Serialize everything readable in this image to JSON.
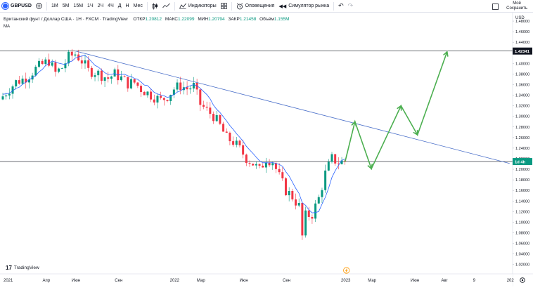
{
  "toolbar": {
    "symbol": "GBPUSD",
    "intervals": [
      "1M",
      "5M",
      "15M",
      "1Ч",
      "2Ч",
      "4Ч",
      "Д",
      "Н",
      "Мес"
    ],
    "indicators_label": "Индикаторы",
    "alerts_label": "Оповещения",
    "replay_label": "Симулятор рынка",
    "save_top": "Моё",
    "save_bottom": "Сохранить"
  },
  "legend": {
    "title": "Британский фунт / Доллар США · 1Н · FXCM · TradingView",
    "open_label": "ОТКР",
    "open": "1.20812",
    "high_label": "МАКС",
    "high": "1.22099",
    "low_label": "МИН",
    "low": "1.20794",
    "close_label": "ЗАКР",
    "close": "1.21458",
    "volume_label": "Объём",
    "volume": "1.155M",
    "ma_label": "MA"
  },
  "logo": {
    "text": "TradingView"
  },
  "colors": {
    "up": "#089981",
    "down": "#f23645",
    "ma": "#2962ff",
    "trend": "#4a6fc9",
    "forecast": "#4caf50"
  },
  "chart_data": {
    "type": "candlestick",
    "currency": "USD",
    "y_ticks": [
      "1.48000",
      "1.46000",
      "1.44000",
      "1.42000",
      "1.40000",
      "1.38000",
      "1.36000",
      "1.34000",
      "1.32000",
      "1.30000",
      "1.28000",
      "1.26000",
      "1.24000",
      "1.22000",
      "1.20000",
      "1.18000",
      "1.16000",
      "1.14000",
      "1.12000",
      "1.10000",
      "1.08000",
      "1.06000",
      "1.04000",
      "1.02000"
    ],
    "ylim": [
      1.005,
      1.496
    ],
    "x_ticks": [
      {
        "label": "2021",
        "idx": 0
      },
      {
        "label": "Апр",
        "idx": 13
      },
      {
        "label": "Июн",
        "idx": 22
      },
      {
        "label": "Сен",
        "idx": 35
      },
      {
        "label": "2022",
        "idx": 52
      },
      {
        "label": "Мар",
        "idx": 60
      },
      {
        "label": "Июн",
        "idx": 73
      },
      {
        "label": "Сен",
        "idx": 86
      },
      {
        "label": "2023",
        "idx": 104
      },
      {
        "label": "Мар",
        "idx": 112
      },
      {
        "label": "Июн",
        "idx": 125
      },
      {
        "label": "Авг",
        "idx": 134
      },
      {
        "label": "9",
        "idx": 143
      },
      {
        "label": "202",
        "idx": 154
      }
    ],
    "price_labels": [
      {
        "text": "1.42341",
        "value": 1.42341,
        "style": "dark"
      },
      {
        "text": "1d 4h",
        "value": 1.21458,
        "style": "green"
      }
    ],
    "horizontal_lines": [
      1.42341,
      1.21458
    ],
    "trend_line": {
      "from": [
        22,
        1.4235
      ],
      "to": [
        154,
        1.211
      ]
    },
    "forecast_path": [
      [
        104,
        1.214
      ],
      [
        107,
        1.29
      ],
      [
        112,
        1.201
      ],
      [
        121,
        1.32
      ],
      [
        126,
        1.265
      ],
      [
        135,
        1.422
      ]
    ],
    "close_path": [
      [
        0,
        1.338
      ],
      [
        2,
        1.352
      ],
      [
        4,
        1.365
      ],
      [
        6,
        1.37
      ],
      [
        8,
        1.378
      ],
      [
        10,
        1.39
      ],
      [
        12,
        1.398
      ],
      [
        14,
        1.405
      ],
      [
        16,
        1.382
      ],
      [
        18,
        1.392
      ],
      [
        20,
        1.412
      ],
      [
        22,
        1.418
      ],
      [
        24,
        1.405
      ],
      [
        26,
        1.386
      ],
      [
        28,
        1.384
      ],
      [
        30,
        1.378
      ],
      [
        32,
        1.372
      ],
      [
        34,
        1.38
      ],
      [
        36,
        1.372
      ],
      [
        38,
        1.362
      ],
      [
        40,
        1.364
      ],
      [
        42,
        1.352
      ],
      [
        44,
        1.344
      ],
      [
        46,
        1.337
      ],
      [
        48,
        1.33
      ],
      [
        50,
        1.338
      ],
      [
        52,
        1.352
      ],
      [
        54,
        1.358
      ],
      [
        56,
        1.352
      ],
      [
        58,
        1.357
      ],
      [
        60,
        1.323
      ],
      [
        62,
        1.311
      ],
      [
        64,
        1.301
      ],
      [
        66,
        1.282
      ],
      [
        68,
        1.259
      ],
      [
        70,
        1.252
      ],
      [
        72,
        1.238
      ],
      [
        74,
        1.221
      ],
      [
        76,
        1.211
      ],
      [
        78,
        1.198
      ],
      [
        80,
        1.221
      ],
      [
        82,
        1.215
      ],
      [
        84,
        1.186
      ],
      [
        86,
        1.16
      ],
      [
        88,
        1.148
      ],
      [
        90,
        1.13
      ],
      [
        91,
        1.073
      ],
      [
        92,
        1.112
      ],
      [
        94,
        1.115
      ],
      [
        96,
        1.145
      ],
      [
        98,
        1.192
      ],
      [
        100,
        1.22
      ],
      [
        102,
        1.213
      ],
      [
        104,
        1.215
      ]
    ]
  }
}
